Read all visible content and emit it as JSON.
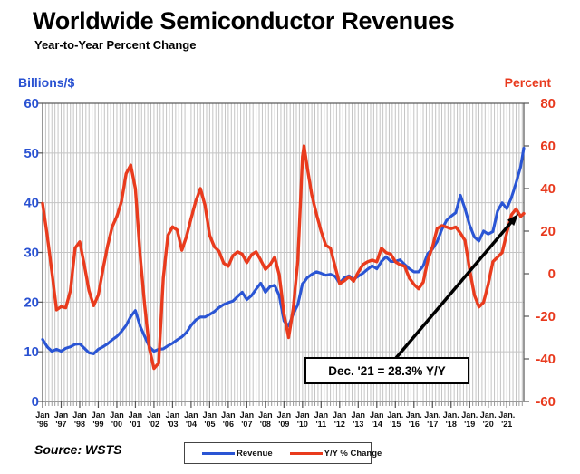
{
  "title": "Worldwide Semiconductor Revenues",
  "subtitle": "Year-to-Year Percent Change",
  "source": "Source: WSTS",
  "annotation": {
    "text": "Dec. '21 = 28.3% Y/Y"
  },
  "legend": {
    "items": [
      {
        "label": "Revenue",
        "color": "#2a55d4"
      },
      {
        "label": "Y/Y % Change",
        "color": "#e93b1d"
      }
    ]
  },
  "left_axis": {
    "label": "Billions/$",
    "color": "#2a52d2",
    "min": 0,
    "max": 60,
    "ticks": [
      0,
      10,
      20,
      30,
      40,
      50,
      60
    ]
  },
  "right_axis": {
    "label": "Percent",
    "color": "#e8391d",
    "min": -60,
    "max": 80,
    "ticks": [
      -60,
      -40,
      -20,
      0,
      20,
      40,
      60,
      80
    ]
  },
  "x_axis": {
    "months": [
      "Jan",
      "Jan",
      "Jan",
      "Jan",
      "Jan",
      "Jan",
      "Jan",
      "Jan",
      "Jan",
      "Jan",
      "Jan",
      "Jan",
      "Jan",
      "Jan",
      "Jan",
      "Jan",
      "Jan",
      "Jan",
      "Jan",
      "Jan.",
      "Jan.",
      "Jan.",
      "Jan.",
      "Jan.",
      "Jan.",
      "Jan."
    ],
    "years": [
      "'96",
      "'97",
      "'98",
      "'99",
      "'00",
      "'01",
      "'02",
      "'03",
      "'04",
      "'05",
      "'06",
      "'07",
      "'08",
      "'09",
      "'10",
      "'11",
      "'12",
      "'13",
      "'14",
      "'15",
      "'16",
      "'17",
      "'18",
      "'19",
      "'20",
      "'21"
    ]
  },
  "colors": {
    "grid": "#c4c4c4",
    "frame": "#555555",
    "arrow": "#000000"
  },
  "chart_data": {
    "type": "line",
    "x_unit": "months since Jan 1996 (Jan '96 .. Dec '21)",
    "x": [
      0,
      3,
      6,
      9,
      12,
      15,
      18,
      21,
      24,
      27,
      30,
      33,
      36,
      39,
      42,
      45,
      48,
      51,
      54,
      57,
      60,
      63,
      66,
      69,
      72,
      75,
      78,
      81,
      84,
      87,
      90,
      93,
      96,
      99,
      102,
      105,
      108,
      111,
      114,
      117,
      120,
      123,
      126,
      129,
      132,
      135,
      138,
      141,
      144,
      147,
      150,
      153,
      156,
      159,
      162,
      165,
      168,
      169,
      171,
      174,
      177,
      180,
      183,
      186,
      189,
      192,
      195,
      198,
      201,
      204,
      207,
      210,
      213,
      216,
      219,
      222,
      225,
      228,
      231,
      234,
      237,
      240,
      243,
      246,
      249,
      252,
      255,
      258,
      261,
      264,
      267,
      270,
      273,
      276,
      279,
      282,
      285,
      288,
      291,
      294,
      297,
      300,
      303,
      306,
      309,
      311
    ],
    "series": [
      {
        "name": "Revenue",
        "axis": "left",
        "color": "#2a55d4",
        "values": [
          12.5,
          11.0,
          10.1,
          10.5,
          10.1,
          10.7,
          11.0,
          11.5,
          11.6,
          10.7,
          9.8,
          9.6,
          10.5,
          11.0,
          11.6,
          12.4,
          13.1,
          14.1,
          15.3,
          17.1,
          18.3,
          15.2,
          13.1,
          11.0,
          10.1,
          10.5,
          10.6,
          11.2,
          11.7,
          12.4,
          13.0,
          13.9,
          15.3,
          16.4,
          17.0,
          17.0,
          17.5,
          18.1,
          18.9,
          19.5,
          19.9,
          20.2,
          21.1,
          22.0,
          20.5,
          21.3,
          22.6,
          23.8,
          22.0,
          23.1,
          23.4,
          21.3,
          16.2,
          15.2,
          17.6,
          19.5,
          23.7,
          24.0,
          24.9,
          25.6,
          26.1,
          25.8,
          25.4,
          25.6,
          25.2,
          23.8,
          24.9,
          25.3,
          24.6,
          25.2,
          25.8,
          26.6,
          27.3,
          26.7,
          28.2,
          29.1,
          28.2,
          28.2,
          28.5,
          27.6,
          26.7,
          26.1,
          26.1,
          27.3,
          29.8,
          30.7,
          32.2,
          34.6,
          36.4,
          37.3,
          38.0,
          41.5,
          38.8,
          35.5,
          33.1,
          32.3,
          34.3,
          33.7,
          34.2,
          38.3,
          40.0,
          38.8,
          41.0,
          44.0,
          47.3,
          51.0
        ]
      },
      {
        "name": "Y/Y % Change",
        "axis": "right",
        "color": "#e93b1d",
        "values": [
          33,
          18,
          1,
          -17,
          -15.5,
          -16,
          -8,
          12,
          15,
          4,
          -8,
          -15,
          -10,
          2,
          13,
          22,
          27,
          34,
          47,
          51,
          40,
          9,
          -15,
          -35,
          -44.5,
          -42,
          -2,
          18,
          22,
          20.5,
          11,
          17.5,
          26,
          34,
          40,
          32,
          18,
          12.7,
          10.6,
          5,
          3.5,
          8.5,
          10.3,
          9.2,
          5.2,
          8.9,
          10.3,
          6.4,
          2.1,
          4.2,
          7.8,
          -0.7,
          -19,
          -30,
          -16.3,
          6.4,
          55,
          60,
          50,
          37,
          28,
          20,
          13.4,
          12,
          3.5,
          -4.7,
          -3.3,
          -1.4,
          -3.5,
          0.7,
          4.2,
          5.6,
          6.4,
          5.6,
          12,
          9.9,
          9.2,
          5.6,
          4.2,
          3.5,
          -2.1,
          -5,
          -7.1,
          -4,
          6.4,
          12.7,
          21.2,
          22.6,
          21.9,
          21.2,
          21.9,
          19.1,
          15.6,
          2.1,
          -9.9,
          -15.6,
          -13.4,
          -5,
          5.6,
          7.8,
          9.9,
          19.1,
          27.6,
          30.4,
          26.9,
          28.3
        ]
      }
    ],
    "ylim_left": [
      0,
      60
    ],
    "ylim_right": [
      -60,
      80
    ],
    "grid": "on",
    "legend_position": "bottom-center",
    "annotation_target": "Dec '21 end of Y/Y % Change line"
  }
}
